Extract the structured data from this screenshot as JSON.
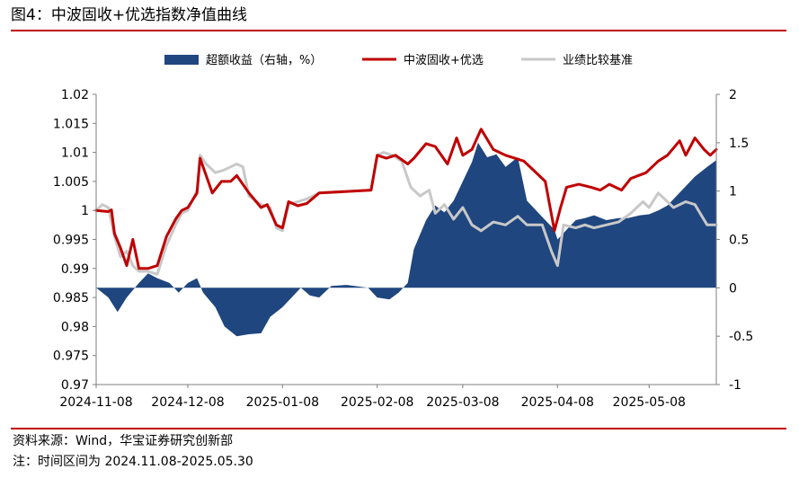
{
  "figure": {
    "title": "图4：中波固收+优选指数净值曲线",
    "source": "资料来源：Wind，华宝证券研究创新部",
    "note": "注：时间区间为 2024.11.08-2025.05.30"
  },
  "colors": {
    "excess": "#1f467f",
    "index": "#c00000",
    "benchmark": "#c8c8c8",
    "rule": "#c00000"
  },
  "chart_data": {
    "type": "line",
    "x_ticks": [
      "2024-11-08",
      "2024-12-08",
      "2025-01-08",
      "2025-02-08",
      "2025-03-08",
      "2025-04-08",
      "2025-05-08"
    ],
    "y_left": {
      "min": 0.97,
      "max": 1.02,
      "ticks": [
        "1.02",
        "1.015",
        "1.01",
        "1.005",
        "1",
        "0.995",
        "0.99",
        "0.985",
        "0.98",
        "0.975",
        "0.97"
      ]
    },
    "y_right": {
      "min": -1,
      "max": 2,
      "ticks": [
        "2",
        "1.5",
        "1",
        "0.5",
        "0",
        "-0.5",
        "-1"
      ]
    },
    "legend_position": "top",
    "series": [
      {
        "name": "超额收益（右轴，%）",
        "kind": "area",
        "axis": "right",
        "points": [
          [
            "2024-11-08",
            0
          ],
          [
            "2024-11-12",
            -0.1
          ],
          [
            "2024-11-15",
            -0.25
          ],
          [
            "2024-11-18",
            -0.1
          ],
          [
            "2024-11-22",
            0.05
          ],
          [
            "2024-11-25",
            0.15
          ],
          [
            "2024-11-28",
            0.1
          ],
          [
            "2024-12-02",
            0.05
          ],
          [
            "2024-12-05",
            -0.05
          ],
          [
            "2024-12-08",
            0.05
          ],
          [
            "2024-12-11",
            0.1
          ],
          [
            "2024-12-13",
            -0.05
          ],
          [
            "2024-12-17",
            -0.2
          ],
          [
            "2024-12-20",
            -0.4
          ],
          [
            "2024-12-24",
            -0.5
          ],
          [
            "2024-12-28",
            -0.48
          ],
          [
            "2025-01-01",
            -0.47
          ],
          [
            "2025-01-04",
            -0.3
          ],
          [
            "2025-01-08",
            -0.2
          ],
          [
            "2025-01-11",
            -0.1
          ],
          [
            "2025-01-14",
            0.0
          ],
          [
            "2025-01-17",
            -0.08
          ],
          [
            "2025-01-20",
            -0.1
          ],
          [
            "2025-01-24",
            0.02
          ],
          [
            "2025-01-29",
            0.03
          ],
          [
            "2025-02-05",
            0.0
          ],
          [
            "2025-02-08",
            -0.1
          ],
          [
            "2025-02-12",
            -0.12
          ],
          [
            "2025-02-15",
            -0.05
          ],
          [
            "2025-02-18",
            0.05
          ],
          [
            "2025-02-20",
            0.4
          ],
          [
            "2025-02-24",
            0.7
          ],
          [
            "2025-02-27",
            0.85
          ],
          [
            "2025-03-02",
            0.78
          ],
          [
            "2025-03-05",
            0.9
          ],
          [
            "2025-03-08",
            1.1
          ],
          [
            "2025-03-11",
            1.3
          ],
          [
            "2025-03-13",
            1.5
          ],
          [
            "2025-03-16",
            1.35
          ],
          [
            "2025-03-19",
            1.38
          ],
          [
            "2025-03-22",
            1.25
          ],
          [
            "2025-03-26",
            1.35
          ],
          [
            "2025-03-29",
            0.9
          ],
          [
            "2025-04-01",
            0.8
          ],
          [
            "2025-04-04",
            0.7
          ],
          [
            "2025-04-07",
            0.6
          ],
          [
            "2025-04-08",
            0.5
          ],
          [
            "2025-04-11",
            0.6
          ],
          [
            "2025-04-14",
            0.7
          ],
          [
            "2025-04-17",
            0.72
          ],
          [
            "2025-04-20",
            0.75
          ],
          [
            "2025-04-24",
            0.7
          ],
          [
            "2025-04-28",
            0.72
          ],
          [
            "2025-05-01",
            0.72
          ],
          [
            "2025-05-05",
            0.75
          ],
          [
            "2025-05-08",
            0.76
          ],
          [
            "2025-05-11",
            0.8
          ],
          [
            "2025-05-14",
            0.85
          ],
          [
            "2025-05-17",
            0.95
          ],
          [
            "2025-05-20",
            1.05
          ],
          [
            "2025-05-23",
            1.15
          ],
          [
            "2025-05-27",
            1.25
          ],
          [
            "2025-05-30",
            1.32
          ]
        ]
      },
      {
        "name": "中波固收+优选",
        "kind": "line",
        "axis": "left",
        "points": [
          [
            "2024-11-08",
            1.0
          ],
          [
            "2024-11-12",
            0.9998
          ],
          [
            "2024-11-13",
            1.0001
          ],
          [
            "2024-11-14",
            0.996
          ],
          [
            "2024-11-16",
            0.9935
          ],
          [
            "2024-11-18",
            0.9905
          ],
          [
            "2024-11-20",
            0.995
          ],
          [
            "2024-11-22",
            0.99
          ],
          [
            "2024-11-25",
            0.99
          ],
          [
            "2024-11-28",
            0.9905
          ],
          [
            "2024-12-01",
            0.9955
          ],
          [
            "2024-12-04",
            0.9985
          ],
          [
            "2024-12-06",
            1.0
          ],
          [
            "2024-12-08",
            1.0005
          ],
          [
            "2024-12-11",
            1.003
          ],
          [
            "2024-12-12",
            1.009
          ],
          [
            "2024-12-14",
            1.006
          ],
          [
            "2024-12-16",
            1.003
          ],
          [
            "2024-12-19",
            1.005
          ],
          [
            "2024-12-22",
            1.005
          ],
          [
            "2024-12-24",
            1.006
          ],
          [
            "2024-12-28",
            1.003
          ],
          [
            "2025-01-01",
            1.0005
          ],
          [
            "2025-01-03",
            1.001
          ],
          [
            "2025-01-06",
            0.9975
          ],
          [
            "2025-01-08",
            0.997
          ],
          [
            "2025-01-10",
            1.0015
          ],
          [
            "2025-01-13",
            1.0008
          ],
          [
            "2025-01-16",
            1.0012
          ],
          [
            "2025-01-20",
            1.003
          ],
          [
            "2025-02-06",
            1.0035
          ],
          [
            "2025-02-08",
            1.0095
          ],
          [
            "2025-02-11",
            1.009
          ],
          [
            "2025-02-14",
            1.0095
          ],
          [
            "2025-02-18",
            1.008
          ],
          [
            "2025-02-20",
            1.009
          ],
          [
            "2025-02-24",
            1.0115
          ],
          [
            "2025-02-27",
            1.011
          ],
          [
            "2025-03-03",
            1.008
          ],
          [
            "2025-03-06",
            1.0125
          ],
          [
            "2025-03-08",
            1.0095
          ],
          [
            "2025-03-11",
            1.0105
          ],
          [
            "2025-03-14",
            1.014
          ],
          [
            "2025-03-18",
            1.0105
          ],
          [
            "2025-03-22",
            1.0095
          ],
          [
            "2025-03-28",
            1.0085
          ],
          [
            "2025-04-04",
            1.005
          ],
          [
            "2025-04-07",
            0.9965
          ],
          [
            "2025-04-09",
            1.0005
          ],
          [
            "2025-04-11",
            1.004
          ],
          [
            "2025-04-15",
            1.0045
          ],
          [
            "2025-04-19",
            1.004
          ],
          [
            "2025-04-22",
            1.0035
          ],
          [
            "2025-04-25",
            1.0045
          ],
          [
            "2025-04-29",
            1.0035
          ],
          [
            "2025-05-02",
            1.0055
          ],
          [
            "2025-05-07",
            1.0065
          ],
          [
            "2025-05-11",
            1.0085
          ],
          [
            "2025-05-14",
            1.0095
          ],
          [
            "2025-05-18",
            1.012
          ],
          [
            "2025-05-20",
            1.0095
          ],
          [
            "2025-05-23",
            1.0125
          ],
          [
            "2025-05-26",
            1.0105
          ],
          [
            "2025-05-28",
            1.0095
          ],
          [
            "2025-05-30",
            1.0105
          ]
        ]
      },
      {
        "name": "业绩比较基准",
        "kind": "line",
        "axis": "left",
        "points": [
          [
            "2024-11-08",
            1.0
          ],
          [
            "2024-11-10",
            1.001
          ],
          [
            "2024-11-12",
            1.0005
          ],
          [
            "2024-11-14",
            0.9955
          ],
          [
            "2024-11-16",
            0.992
          ],
          [
            "2024-11-18",
            0.993
          ],
          [
            "2024-11-20",
            0.9905
          ],
          [
            "2024-11-22",
            0.9895
          ],
          [
            "2024-11-25",
            0.9895
          ],
          [
            "2024-11-28",
            0.989
          ],
          [
            "2024-12-01",
            0.994
          ],
          [
            "2024-12-04",
            0.9975
          ],
          [
            "2024-12-06",
            0.9995
          ],
          [
            "2024-12-08",
            1.0
          ],
          [
            "2024-12-11",
            1.0035
          ],
          [
            "2024-12-12",
            1.0095
          ],
          [
            "2024-12-14",
            1.008
          ],
          [
            "2024-12-17",
            1.0065
          ],
          [
            "2024-12-20",
            1.007
          ],
          [
            "2024-12-24",
            1.008
          ],
          [
            "2024-12-26",
            1.0075
          ],
          [
            "2024-12-28",
            1.0025
          ],
          [
            "2025-01-01",
            1.001
          ],
          [
            "2025-01-04",
            1.0005
          ],
          [
            "2025-01-06",
            0.997
          ],
          [
            "2025-01-08",
            0.9965
          ],
          [
            "2025-01-10",
            1.001
          ],
          [
            "2025-01-13",
            1.0015
          ],
          [
            "2025-01-16",
            1.002
          ],
          [
            "2025-01-20",
            1.003
          ],
          [
            "2025-02-06",
            1.0035
          ],
          [
            "2025-02-08",
            1.0095
          ],
          [
            "2025-02-10",
            1.01
          ],
          [
            "2025-02-13",
            1.0095
          ],
          [
            "2025-02-16",
            1.0085
          ],
          [
            "2025-02-19",
            1.004
          ],
          [
            "2025-02-22",
            1.0025
          ],
          [
            "2025-02-25",
            1.0035
          ],
          [
            "2025-02-27",
            0.9995
          ],
          [
            "2025-03-02",
            1.001
          ],
          [
            "2025-03-05",
            0.9985
          ],
          [
            "2025-03-08",
            1.0005
          ],
          [
            "2025-03-11",
            0.9975
          ],
          [
            "2025-03-14",
            0.9965
          ],
          [
            "2025-03-18",
            0.998
          ],
          [
            "2025-03-22",
            0.9975
          ],
          [
            "2025-03-26",
            0.999
          ],
          [
            "2025-03-29",
            0.9975
          ],
          [
            "2025-04-03",
            0.9975
          ],
          [
            "2025-04-06",
            0.993
          ],
          [
            "2025-04-08",
            0.9905
          ],
          [
            "2025-04-10",
            0.9975
          ],
          [
            "2025-04-14",
            0.997
          ],
          [
            "2025-04-17",
            0.9975
          ],
          [
            "2025-04-20",
            0.997
          ],
          [
            "2025-04-24",
            0.9975
          ],
          [
            "2025-04-28",
            0.998
          ],
          [
            "2025-05-02",
            0.9995
          ],
          [
            "2025-05-06",
            1.0015
          ],
          [
            "2025-05-08",
            1.0005
          ],
          [
            "2025-05-11",
            1.003
          ],
          [
            "2025-05-14",
            1.0015
          ],
          [
            "2025-05-16",
            1.0005
          ],
          [
            "2025-05-20",
            1.0015
          ],
          [
            "2025-05-23",
            1.001
          ],
          [
            "2025-05-27",
            0.9975
          ],
          [
            "2025-05-30",
            0.9975
          ]
        ]
      }
    ]
  }
}
